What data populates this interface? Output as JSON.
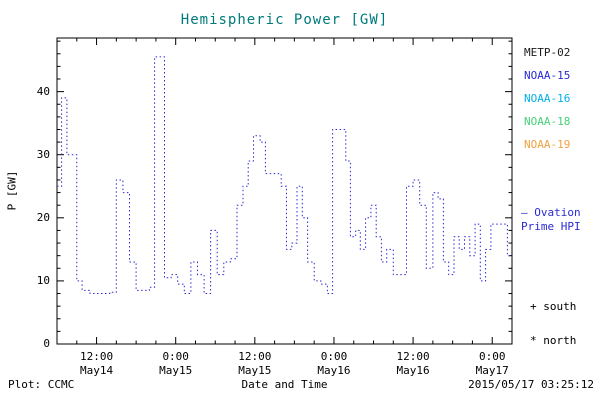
{
  "title": "Hemispheric Power [GW]",
  "ylabel": "P [GW]",
  "colors": {
    "title": "#007a7a",
    "axis": "#000000",
    "ovation": "#2a2ad4"
  },
  "legend": {
    "satellites": [
      {
        "label": "METP-02",
        "color": "#1a1a1a"
      },
      {
        "label": "NOAA-15",
        "color": "#2a2ad4"
      },
      {
        "label": "NOAA-16",
        "color": "#00b0e8"
      },
      {
        "label": "NOAA-18",
        "color": "#46d07a"
      },
      {
        "label": "NOAA-19",
        "color": "#f0a040"
      }
    ],
    "ovation_line1": "— Ovation",
    "ovation_line2": "Prime HPI",
    "south_marker": "+ south",
    "north_marker": "* north"
  },
  "footer": {
    "plot_credit": "Plot: CCMC",
    "xlabel": "Date and Time",
    "timestamp": "2015/05/17 03:25:12"
  },
  "chart_data": {
    "type": "line",
    "step": true,
    "title": "Hemispheric Power [GW]",
    "xlabel": "Date and Time",
    "ylabel": "P [GW]",
    "ylim": [
      0,
      48.5
    ],
    "yticks": [
      0,
      10,
      20,
      30,
      40
    ],
    "y_minor_step": 2,
    "x_minor_step_hours": 3,
    "xlim_hours": [
      0,
      69
    ],
    "x_axis_start": "2015-05-14 06:00",
    "xticks": [
      {
        "hour": 6,
        "time": "12:00",
        "date": "May14"
      },
      {
        "hour": 18,
        "time": "0:00",
        "date": "May15"
      },
      {
        "hour": 30,
        "time": "12:00",
        "date": "May15"
      },
      {
        "hour": 42,
        "time": "0:00",
        "date": "May16"
      },
      {
        "hour": 54,
        "time": "12:00",
        "date": "May16"
      },
      {
        "hour": 66,
        "time": "0:00",
        "date": "May17"
      }
    ],
    "series": [
      {
        "name": "Ovation Prime HPI",
        "color": "#2a2ad4",
        "style": "dotted-step",
        "points": [
          [
            0,
            25
          ],
          [
            0.7,
            39
          ],
          [
            1.5,
            30
          ],
          [
            2.3,
            30
          ],
          [
            3,
            10
          ],
          [
            3.8,
            8.5
          ],
          [
            5,
            8
          ],
          [
            6.5,
            8
          ],
          [
            8,
            8.2
          ],
          [
            9,
            26
          ],
          [
            10,
            24
          ],
          [
            11,
            13
          ],
          [
            12,
            8.5
          ],
          [
            13,
            8.5
          ],
          [
            14,
            9
          ],
          [
            14.8,
            45.5
          ],
          [
            16.3,
            10.5
          ],
          [
            17.3,
            11
          ],
          [
            18.3,
            9.5
          ],
          [
            19.3,
            8
          ],
          [
            20.3,
            13
          ],
          [
            21.3,
            11
          ],
          [
            22.3,
            8
          ],
          [
            23.3,
            18
          ],
          [
            24.3,
            11
          ],
          [
            25.3,
            13
          ],
          [
            26.3,
            13.5
          ],
          [
            27.3,
            22
          ],
          [
            28.2,
            25
          ],
          [
            29,
            29
          ],
          [
            29.8,
            33
          ],
          [
            30.8,
            32
          ],
          [
            31.6,
            27
          ],
          [
            33,
            27
          ],
          [
            34,
            25
          ],
          [
            34.8,
            15
          ],
          [
            35.6,
            16
          ],
          [
            36.4,
            25
          ],
          [
            37.2,
            20
          ],
          [
            38,
            13
          ],
          [
            39,
            10
          ],
          [
            40,
            9.5
          ],
          [
            41,
            8
          ],
          [
            41.8,
            34
          ],
          [
            43.2,
            34
          ],
          [
            43.8,
            29
          ],
          [
            44.5,
            17
          ],
          [
            45.3,
            18
          ],
          [
            46,
            15
          ],
          [
            46.8,
            20
          ],
          [
            47.6,
            22
          ],
          [
            48.4,
            17
          ],
          [
            49.2,
            13
          ],
          [
            50,
            15
          ],
          [
            51,
            11
          ],
          [
            52,
            11
          ],
          [
            53,
            25
          ],
          [
            54,
            26
          ],
          [
            55,
            22
          ],
          [
            56,
            12
          ],
          [
            57,
            24
          ],
          [
            57.8,
            23
          ],
          [
            58.6,
            13
          ],
          [
            59.4,
            11
          ],
          [
            60.2,
            17
          ],
          [
            61,
            15
          ],
          [
            61.8,
            17
          ],
          [
            62.6,
            14
          ],
          [
            63.4,
            19
          ],
          [
            64.2,
            10
          ],
          [
            65,
            15
          ],
          [
            65.8,
            19
          ],
          [
            66.6,
            19
          ],
          [
            67.6,
            19
          ],
          [
            68.3,
            14
          ],
          [
            69,
            14
          ]
        ]
      }
    ]
  }
}
